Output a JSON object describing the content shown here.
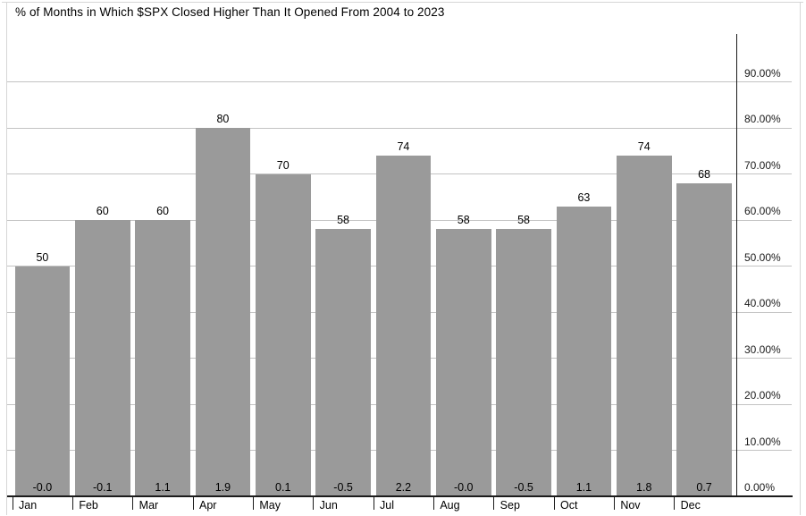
{
  "title": "% of Months in Which $SPX Closed Higher Than It Opened From 2004 to 2023",
  "colors": {
    "bar": "#9a9a9a",
    "gridline": "#c3c3c3",
    "axis": "#1b1b1b",
    "border": "#d6d6d6",
    "text": "#000000",
    "background": "#ffffff"
  },
  "chart_data": {
    "type": "bar",
    "title": "% of Months in Which $SPX Closed Higher Than It Opened From 2004 to 2023",
    "categories": [
      "Jan",
      "Feb",
      "Mar",
      "Apr",
      "May",
      "Jun",
      "Jul",
      "Aug",
      "Sep",
      "Oct",
      "Nov",
      "Dec"
    ],
    "values": [
      50,
      60,
      60,
      80,
      70,
      58,
      74,
      58,
      58,
      63,
      74,
      68
    ],
    "bar_top_labels": [
      "50",
      "60",
      "60",
      "80",
      "70",
      "58",
      "74",
      "58",
      "58",
      "63",
      "74",
      "68"
    ],
    "bar_base_labels": [
      "-0.0",
      "-0.1",
      "1.1",
      "1.9",
      "0.1",
      "-0.5",
      "2.2",
      "-0.0",
      "-0.5",
      "1.1",
      "1.8",
      "0.7"
    ],
    "ytick_values": [
      0,
      10,
      20,
      30,
      40,
      50,
      60,
      70,
      80,
      90
    ],
    "ytick_labels": [
      "0.00%",
      "10.00%",
      "20.00%",
      "30.00%",
      "40.00%",
      "50.00%",
      "60.00%",
      "70.00%",
      "80.00%",
      "90.00%"
    ],
    "ylim": [
      0,
      100
    ],
    "grid": true,
    "legend": false,
    "y_axis_position": "right",
    "xlabel": "",
    "ylabel": ""
  }
}
